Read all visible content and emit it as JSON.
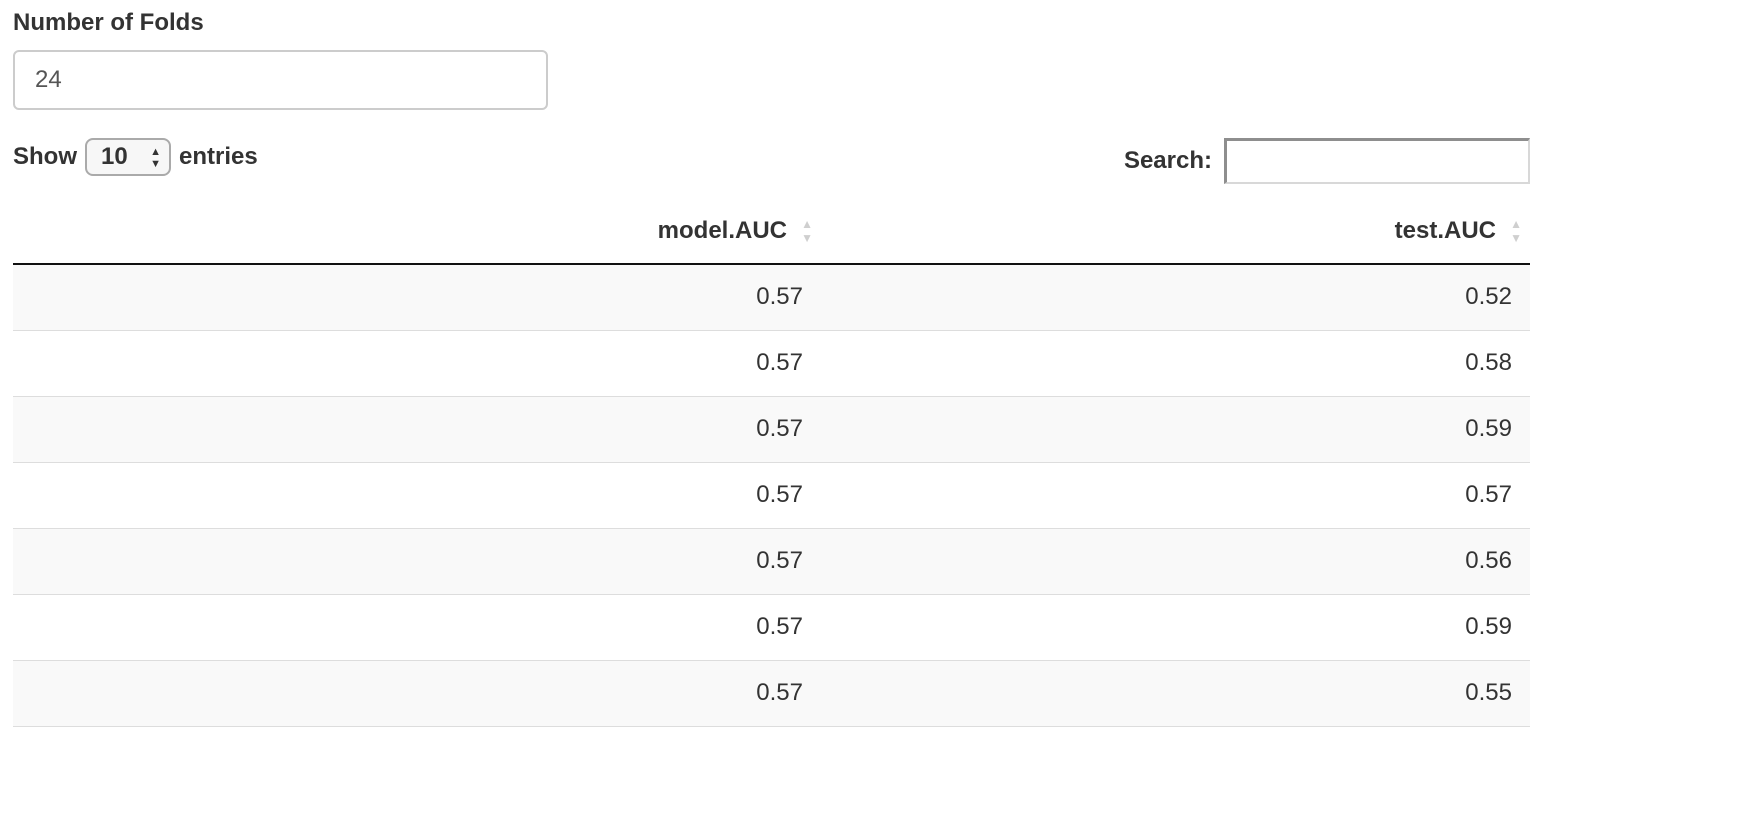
{
  "folds": {
    "label": "Number of Folds",
    "value": "24"
  },
  "length": {
    "show_label": "Show",
    "selected": "10",
    "entries_label": "entries"
  },
  "search": {
    "label": "Search:",
    "value": ""
  },
  "table": {
    "columns": [
      "model.AUC",
      "test.AUC"
    ],
    "rows": [
      [
        "0.57",
        "0.52"
      ],
      [
        "0.57",
        "0.58"
      ],
      [
        "0.57",
        "0.59"
      ],
      [
        "0.57",
        "0.57"
      ],
      [
        "0.57",
        "0.56"
      ],
      [
        "0.57",
        "0.59"
      ],
      [
        "0.57",
        "0.55"
      ]
    ]
  },
  "icons": {
    "sort": "sort-both-icon",
    "select_arrows": "select-arrows-icon"
  }
}
